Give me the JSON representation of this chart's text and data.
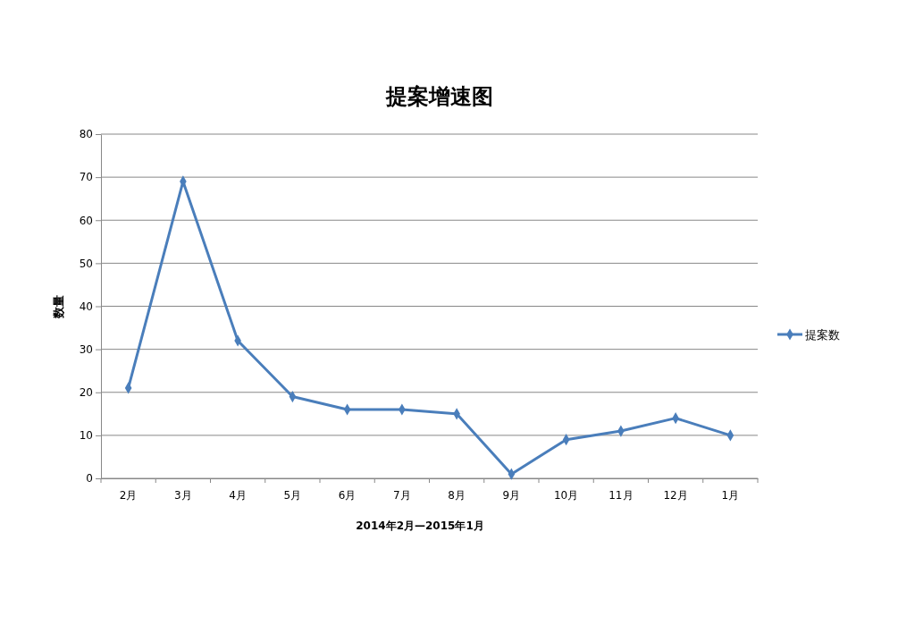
{
  "chart_data": {
    "type": "line",
    "title": "提案增速图",
    "xlabel": "2014年2月—2015年1月",
    "ylabel": "数量",
    "categories": [
      "2月",
      "3月",
      "4月",
      "5月",
      "6月",
      "7月",
      "8月",
      "9月",
      "10月",
      "11月",
      "12月",
      "1月"
    ],
    "series": [
      {
        "name": "提案数",
        "color": "#4a7ebb",
        "values": [
          21,
          69,
          32,
          19,
          16,
          16,
          15,
          1,
          9,
          11,
          14,
          10
        ]
      }
    ],
    "ylim": [
      0,
      80
    ],
    "yticks": [
      0,
      10,
      20,
      30,
      40,
      50,
      60,
      70,
      80
    ],
    "grid": "y",
    "legend": "right",
    "marker": "diamond",
    "line_style": "solid"
  }
}
